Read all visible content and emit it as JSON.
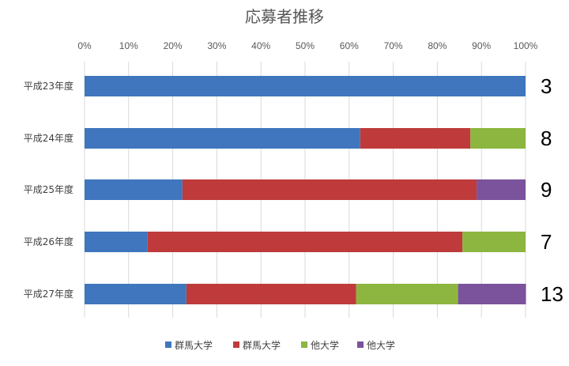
{
  "chart_data": {
    "type": "bar",
    "orientation": "horizontal",
    "stacked": "percent",
    "title": "応募者推移",
    "x_ticks": [
      "0%",
      "10%",
      "20%",
      "30%",
      "40%",
      "50%",
      "60%",
      "70%",
      "80%",
      "90%",
      "100%"
    ],
    "xlim": [
      0,
      100
    ],
    "grid": true,
    "legend_position": "bottom",
    "categories": [
      "平成23年度",
      "平成24年度",
      "平成25年度",
      "平成26年度",
      "平成27年度"
    ],
    "series": [
      {
        "name": "群馬大学",
        "color": "#3f76be",
        "values": [
          100,
          62.5,
          22.2,
          14.3,
          23.1
        ]
      },
      {
        "name": "群馬大学",
        "color": "#bf3b3b",
        "values": [
          0,
          25,
          66.7,
          71.4,
          38.5
        ]
      },
      {
        "name": "他大学",
        "color": "#8cb63f",
        "values": [
          0,
          12.5,
          0,
          14.3,
          23.1
        ]
      },
      {
        "name": "他大学",
        "color": "#7b529c",
        "values": [
          0,
          0,
          11.1,
          0,
          15.4
        ]
      }
    ],
    "totals": [
      "3",
      "8",
      "9",
      "7",
      "13"
    ]
  }
}
